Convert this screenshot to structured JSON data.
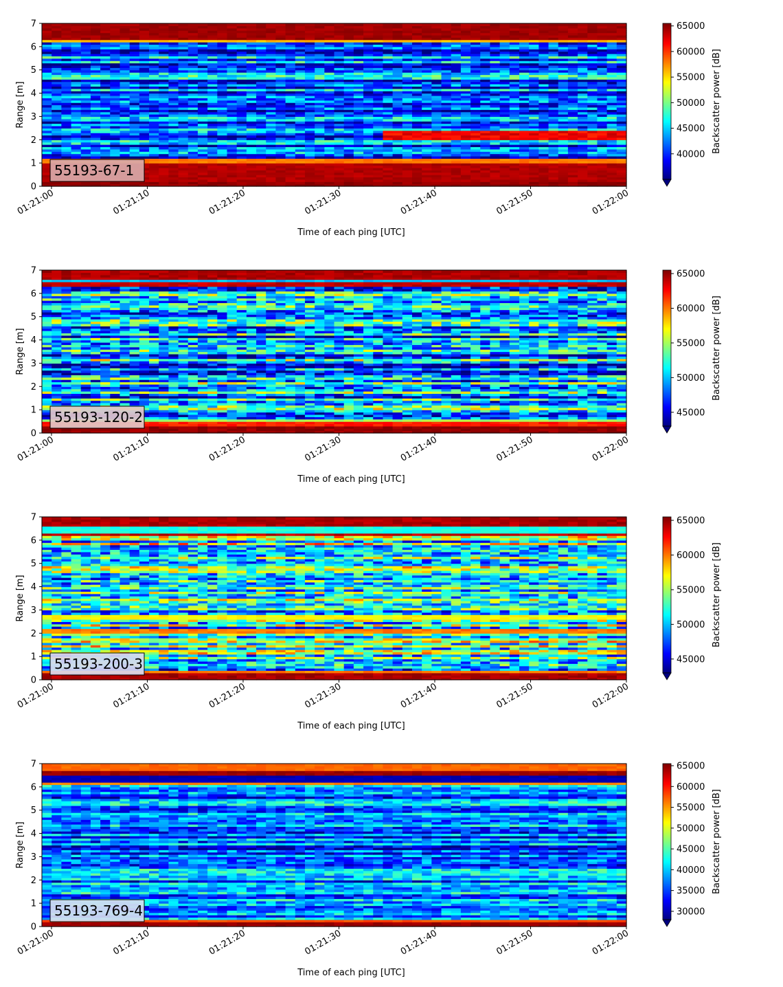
{
  "chart_data": [
    {
      "type": "heatmap",
      "label": "55193-67-1",
      "label_box_color": "#d9a9a9",
      "xlabel": "Time of each ping [UTC]",
      "ylabel": "Range [m]",
      "xlim": [
        "01:20:59",
        "01:22:00"
      ],
      "ylim": [
        0,
        7
      ],
      "x_ticks": [
        "01:21:00",
        "01:21:10",
        "01:21:20",
        "01:21:30",
        "01:21:40",
        "01:21:50",
        "01:22:00"
      ],
      "y_ticks": [
        "0",
        "1",
        "2",
        "3",
        "4",
        "5",
        "6",
        "7"
      ],
      "colorscale": "jet",
      "colorbar": {
        "label": "Backscatter power [dB]",
        "vmin": 35000,
        "vmax": 65500,
        "ticks": [
          40000,
          45000,
          50000,
          55000,
          60000,
          65000
        ],
        "tick_labels": [
          "40000",
          "45000",
          "50000",
          "55000",
          "60000",
          "65000"
        ],
        "extend": "min"
      },
      "bands": [
        {
          "range": [
            0.0,
            0.25
          ],
          "value": 65000
        },
        {
          "range": [
            0.25,
            1.05
          ],
          "value": 64000
        },
        {
          "range": [
            1.05,
            1.2
          ],
          "value": 58000
        },
        {
          "range": [
            6.2,
            6.3
          ],
          "value": 56000
        },
        {
          "range": [
            6.3,
            7.0
          ],
          "value": 64500
        }
      ],
      "background_mean": 41500,
      "features": [
        {
          "description": "high-backscatter layer",
          "time": [
            "01:21:35",
            "01:22:00"
          ],
          "range": [
            2.0,
            2.4
          ],
          "value": 62000
        }
      ]
    },
    {
      "type": "heatmap",
      "label": "55193-120-2",
      "label_box_color": "#e2c8c8",
      "xlabel": "Time of each ping [UTC]",
      "ylabel": "Range [m]",
      "xlim": [
        "01:20:59",
        "01:22:00"
      ],
      "ylim": [
        0,
        7
      ],
      "x_ticks": [
        "01:21:00",
        "01:21:10",
        "01:21:20",
        "01:21:30",
        "01:21:40",
        "01:21:50",
        "01:22:00"
      ],
      "y_ticks": [
        "0",
        "1",
        "2",
        "3",
        "4",
        "5",
        "6",
        "7"
      ],
      "colorscale": "jet",
      "colorbar": {
        "label": "Backscatter power [dB]",
        "vmin": 43000,
        "vmax": 65500,
        "ticks": [
          45000,
          50000,
          55000,
          60000,
          65000
        ],
        "tick_labels": [
          "45000",
          "50000",
          "55000",
          "60000",
          "65000"
        ],
        "extend": "min"
      },
      "bands": [
        {
          "range": [
            0.0,
            0.3
          ],
          "value": 65000
        },
        {
          "range": [
            0.3,
            0.5
          ],
          "value": 62000
        },
        {
          "range": [
            0.5,
            0.6
          ],
          "value": 55000
        },
        {
          "range": [
            6.3,
            6.5
          ],
          "value": 64000
        },
        {
          "range": [
            6.5,
            6.65
          ],
          "value": 50000
        },
        {
          "range": [
            6.65,
            7.0
          ],
          "value": 64500
        }
      ],
      "background_mean": 49500,
      "features": []
    },
    {
      "type": "heatmap",
      "label": "55193-200-3",
      "label_box_color": "#d8d8ee",
      "xlabel": "Time of each ping [UTC]",
      "ylabel": "Range [m]",
      "xlim": [
        "01:20:59",
        "01:22:00"
      ],
      "ylim": [
        0,
        7
      ],
      "x_ticks": [
        "01:21:00",
        "01:21:10",
        "01:21:20",
        "01:21:30",
        "01:21:40",
        "01:21:50",
        "01:22:00"
      ],
      "y_ticks": [
        "0",
        "1",
        "2",
        "3",
        "4",
        "5",
        "6",
        "7"
      ],
      "colorscale": "jet",
      "colorbar": {
        "label": "Backscatter power [dB]",
        "vmin": 43000,
        "vmax": 65500,
        "ticks": [
          45000,
          50000,
          55000,
          60000,
          65000
        ],
        "tick_labels": [
          "45000",
          "50000",
          "55000",
          "60000",
          "65000"
        ],
        "extend": "min"
      },
      "bands": [
        {
          "range": [
            0.0,
            0.3
          ],
          "value": 64500
        },
        {
          "range": [
            0.3,
            0.45
          ],
          "value": 60000
        },
        {
          "range": [
            2.05,
            2.2
          ],
          "value": 60000
        },
        {
          "range": [
            2.6,
            2.8
          ],
          "value": 57000
        },
        {
          "range": [
            6.2,
            6.35
          ],
          "value": 64000
        },
        {
          "range": [
            6.35,
            6.6
          ],
          "value": 52000
        },
        {
          "range": [
            6.6,
            7.0
          ],
          "value": 64500
        }
      ],
      "background_mean": 52000,
      "features": []
    },
    {
      "type": "heatmap",
      "label": "55193-769-4",
      "label_box_color": "#d4dcf0",
      "xlabel": "Time of each ping [UTC]",
      "ylabel": "Range [m]",
      "xlim": [
        "01:20:59",
        "01:22:00"
      ],
      "ylim": [
        0,
        7
      ],
      "x_ticks": [
        "01:21:00",
        "01:21:10",
        "01:21:20",
        "01:21:30",
        "01:21:40",
        "01:21:50",
        "01:22:00"
      ],
      "y_ticks": [
        "0",
        "1",
        "2",
        "3",
        "4",
        "5",
        "6",
        "7"
      ],
      "colorscale": "jet",
      "colorbar": {
        "label": "Backscatter power [dB]",
        "vmin": 28000,
        "vmax": 65500,
        "ticks": [
          30000,
          35000,
          40000,
          45000,
          50000,
          55000,
          60000,
          65000
        ],
        "tick_labels": [
          "30000",
          "35000",
          "40000",
          "45000",
          "50000",
          "55000",
          "60000",
          "65000"
        ],
        "extend": "min"
      },
      "bands": [
        {
          "range": [
            0.0,
            0.2
          ],
          "value": 64500
        },
        {
          "range": [
            0.2,
            0.3
          ],
          "value": 58000
        },
        {
          "range": [
            6.1,
            6.25
          ],
          "value": 56000
        },
        {
          "range": [
            6.25,
            6.5
          ],
          "value": 30000
        },
        {
          "range": [
            6.5,
            6.75
          ],
          "value": 64500
        },
        {
          "range": [
            6.75,
            7.0
          ],
          "value": 57000
        }
      ],
      "background_mean": 37000,
      "features": []
    }
  ]
}
